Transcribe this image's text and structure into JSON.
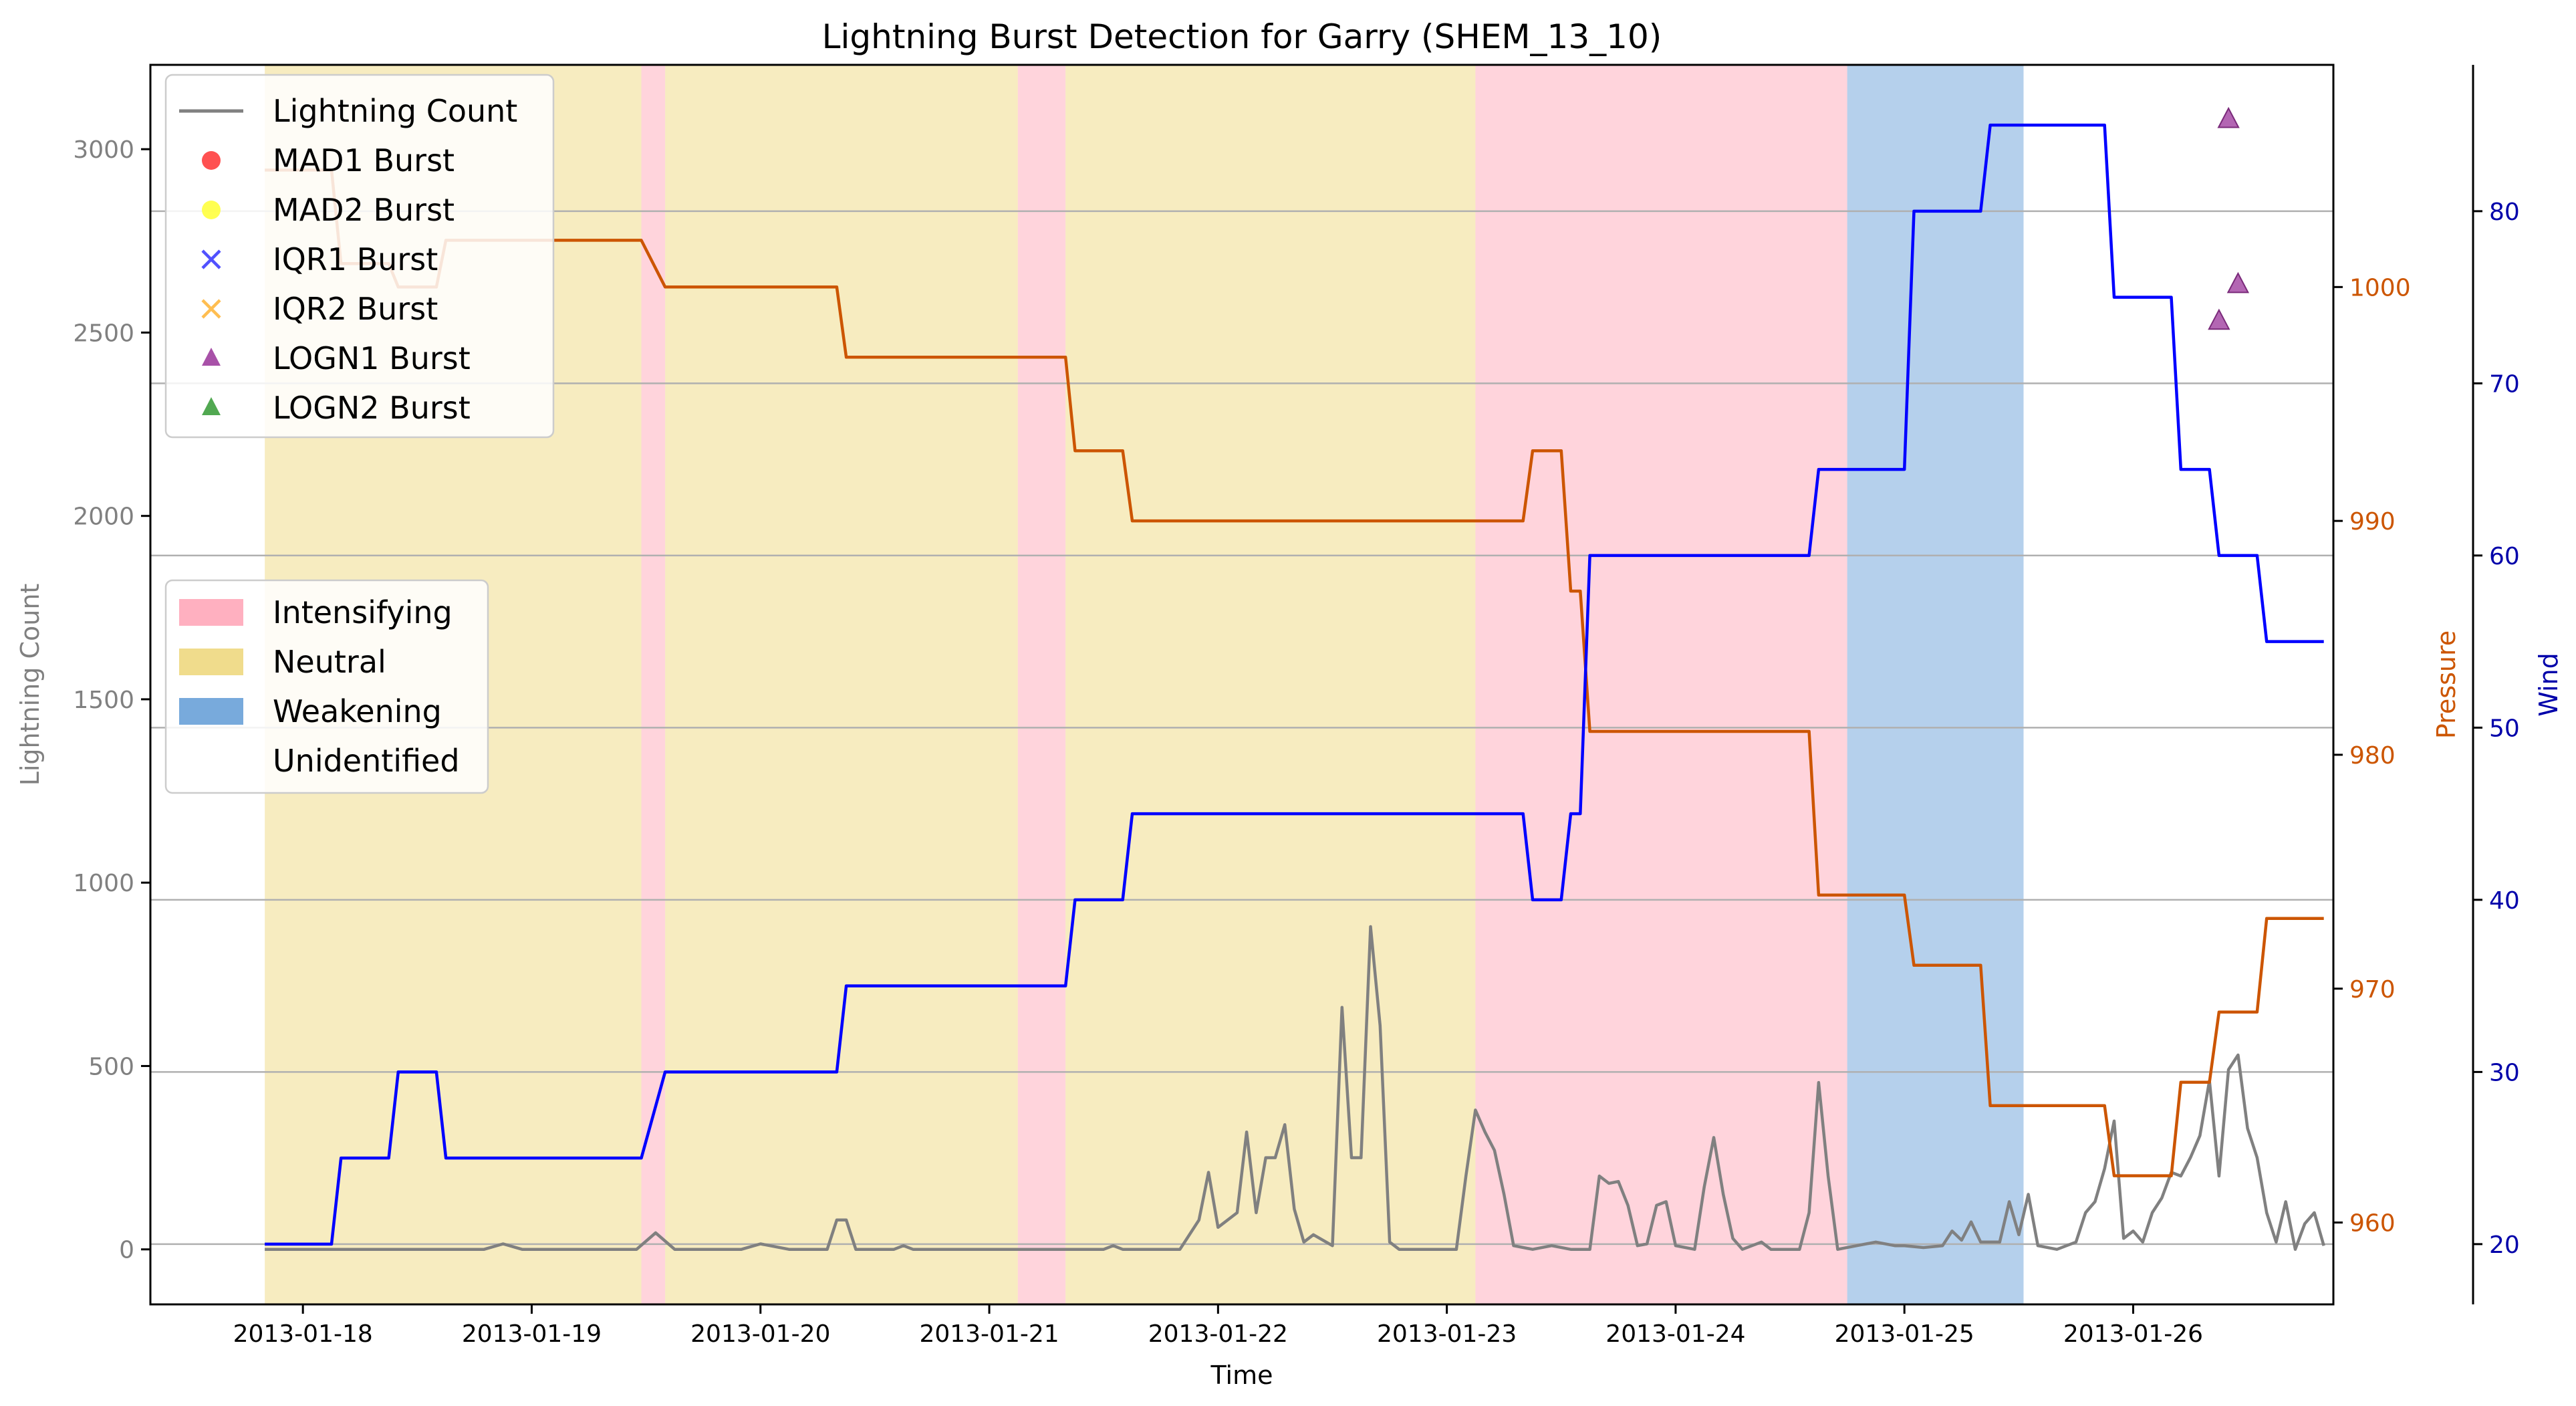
{
  "chart_data": {
    "type": "line",
    "title": "Lightning Burst Detection for Garry (SHEM_13_10)",
    "xlabel": "Time",
    "x_range": [
      "2013-01-17T08:00",
      "2013-01-26T21:00"
    ],
    "x_ticks": [
      "2013-01-18",
      "2013-01-19",
      "2013-01-20",
      "2013-01-21",
      "2013-01-22",
      "2013-01-23",
      "2013-01-24",
      "2013-01-25",
      "2013-01-26"
    ],
    "axes": {
      "lightning": {
        "label": "Lightning Count",
        "ylim": [
          -150,
          3230
        ],
        "ticks": [
          0,
          500,
          1000,
          1500,
          2000,
          2500,
          3000
        ],
        "color": "#808080"
      },
      "pressure": {
        "label": "Pressure",
        "ylim": [
          956.5,
          1009.5
        ],
        "ticks": [
          960,
          970,
          980,
          990,
          1000
        ],
        "color": "#cc5500"
      },
      "wind": {
        "label": "Wind",
        "ylim": [
          16.5,
          88.5
        ],
        "ticks": [
          20,
          30,
          40,
          50,
          60,
          70,
          80
        ],
        "color": "#0000aa"
      }
    },
    "grid_y_values": [
      20,
      30,
      40,
      50,
      60,
      70,
      80
    ],
    "phases": [
      {
        "start": "2013-01-17T20:00",
        "end": "2013-01-19T11:30",
        "phase": "Neutral"
      },
      {
        "start": "2013-01-19T11:30",
        "end": "2013-01-19T14:00",
        "phase": "Intensifying"
      },
      {
        "start": "2013-01-19T14:00",
        "end": "2013-01-21T03:00",
        "phase": "Neutral"
      },
      {
        "start": "2013-01-21T03:00",
        "end": "2013-01-21T08:00",
        "phase": "Intensifying"
      },
      {
        "start": "2013-01-21T08:00",
        "end": "2013-01-23T03:00",
        "phase": "Neutral"
      },
      {
        "start": "2013-01-23T03:00",
        "end": "2013-01-24T18:00",
        "phase": "Intensifying"
      },
      {
        "start": "2013-01-24T18:00",
        "end": "2013-01-25T12:30",
        "phase": "Weakening"
      }
    ],
    "series": [
      {
        "name": "Lightning Count",
        "axis": "lightning",
        "color": "#808080",
        "points": [
          [
            "2013-01-17T20:00",
            0
          ],
          [
            "2013-01-18T19:00",
            0
          ],
          [
            "2013-01-18T21:00",
            15
          ],
          [
            "2013-01-18T23:00",
            0
          ],
          [
            "2013-01-19T11:00",
            0
          ],
          [
            "2013-01-19T13:00",
            45
          ],
          [
            "2013-01-19T15:00",
            0
          ],
          [
            "2013-01-19T22:00",
            0
          ],
          [
            "2013-01-20T00:00",
            15
          ],
          [
            "2013-01-20T03:00",
            0
          ],
          [
            "2013-01-20T07:00",
            0
          ],
          [
            "2013-01-20T08:00",
            80
          ],
          [
            "2013-01-20T09:00",
            80
          ],
          [
            "2013-01-20T10:00",
            0
          ],
          [
            "2013-01-20T14:00",
            0
          ],
          [
            "2013-01-20T15:00",
            10
          ],
          [
            "2013-01-20T16:00",
            0
          ],
          [
            "2013-01-21T12:00",
            0
          ],
          [
            "2013-01-21T13:00",
            10
          ],
          [
            "2013-01-21T14:00",
            0
          ],
          [
            "2013-01-21T20:00",
            0
          ],
          [
            "2013-01-21T22:00",
            80
          ],
          [
            "2013-01-21T23:00",
            210
          ],
          [
            "2013-01-22T00:00",
            60
          ],
          [
            "2013-01-22T02:00",
            100
          ],
          [
            "2013-01-22T03:00",
            320
          ],
          [
            "2013-01-22T04:00",
            100
          ],
          [
            "2013-01-22T05:00",
            250
          ],
          [
            "2013-01-22T06:00",
            250
          ],
          [
            "2013-01-22T07:00",
            340
          ],
          [
            "2013-01-22T08:00",
            110
          ],
          [
            "2013-01-22T09:00",
            20
          ],
          [
            "2013-01-22T10:00",
            40
          ],
          [
            "2013-01-22T12:00",
            10
          ],
          [
            "2013-01-22T13:00",
            660
          ],
          [
            "2013-01-22T14:00",
            250
          ],
          [
            "2013-01-22T15:00",
            250
          ],
          [
            "2013-01-22T16:00",
            880
          ],
          [
            "2013-01-22T17:00",
            610
          ],
          [
            "2013-01-22T18:00",
            20
          ],
          [
            "2013-01-22T19:00",
            0
          ],
          [
            "2013-01-22T22:00",
            0
          ],
          [
            "2013-01-23T01:00",
            0
          ],
          [
            "2013-01-23T02:00",
            200
          ],
          [
            "2013-01-23T03:00",
            380
          ],
          [
            "2013-01-23T04:00",
            320
          ],
          [
            "2013-01-23T05:00",
            270
          ],
          [
            "2013-01-23T06:00",
            150
          ],
          [
            "2013-01-23T07:00",
            10
          ],
          [
            "2013-01-23T09:00",
            0
          ],
          [
            "2013-01-23T11:00",
            10
          ],
          [
            "2013-01-23T13:00",
            0
          ],
          [
            "2013-01-23T15:00",
            0
          ],
          [
            "2013-01-23T16:00",
            200
          ],
          [
            "2013-01-23T17:00",
            180
          ],
          [
            "2013-01-23T18:00",
            185
          ],
          [
            "2013-01-23T19:00",
            120
          ],
          [
            "2013-01-23T20:00",
            10
          ],
          [
            "2013-01-23T21:00",
            15
          ],
          [
            "2013-01-23T22:00",
            120
          ],
          [
            "2013-01-23T23:00",
            130
          ],
          [
            "2013-01-24T00:00",
            10
          ],
          [
            "2013-01-24T02:00",
            0
          ],
          [
            "2013-01-24T03:00",
            170
          ],
          [
            "2013-01-24T04:00",
            305
          ],
          [
            "2013-01-24T05:00",
            150
          ],
          [
            "2013-01-24T06:00",
            30
          ],
          [
            "2013-01-24T07:00",
            0
          ],
          [
            "2013-01-24T09:00",
            20
          ],
          [
            "2013-01-24T10:00",
            0
          ],
          [
            "2013-01-24T13:00",
            0
          ],
          [
            "2013-01-24T14:00",
            100
          ],
          [
            "2013-01-24T15:00",
            455
          ],
          [
            "2013-01-24T16:00",
            200
          ],
          [
            "2013-01-24T17:00",
            0
          ],
          [
            "2013-01-24T19:00",
            10
          ],
          [
            "2013-01-24T21:00",
            20
          ],
          [
            "2013-01-24T23:00",
            10
          ],
          [
            "2013-01-25T00:00",
            10
          ],
          [
            "2013-01-25T02:00",
            5
          ],
          [
            "2013-01-25T04:00",
            10
          ],
          [
            "2013-01-25T05:00",
            50
          ],
          [
            "2013-01-25T06:00",
            25
          ],
          [
            "2013-01-25T07:00",
            75
          ],
          [
            "2013-01-25T08:00",
            20
          ],
          [
            "2013-01-25T10:00",
            20
          ],
          [
            "2013-01-25T11:00",
            130
          ],
          [
            "2013-01-25T12:00",
            40
          ],
          [
            "2013-01-25T13:00",
            150
          ],
          [
            "2013-01-25T14:00",
            10
          ],
          [
            "2013-01-25T16:00",
            0
          ],
          [
            "2013-01-25T18:00",
            20
          ],
          [
            "2013-01-25T19:00",
            100
          ],
          [
            "2013-01-25T20:00",
            130
          ],
          [
            "2013-01-25T21:00",
            220
          ],
          [
            "2013-01-25T22:00",
            350
          ],
          [
            "2013-01-25T23:00",
            30
          ],
          [
            "2013-01-26T00:00",
            50
          ],
          [
            "2013-01-26T01:00",
            20
          ],
          [
            "2013-01-26T02:00",
            100
          ],
          [
            "2013-01-26T03:00",
            140
          ],
          [
            "2013-01-26T04:00",
            210
          ],
          [
            "2013-01-26T05:00",
            200
          ],
          [
            "2013-01-26T06:00",
            250
          ],
          [
            "2013-01-26T07:00",
            310
          ],
          [
            "2013-01-26T08:00",
            460
          ],
          [
            "2013-01-26T09:00",
            200
          ],
          [
            "2013-01-26T10:00",
            490
          ],
          [
            "2013-01-26T11:00",
            530
          ],
          [
            "2013-01-26T12:00",
            330
          ],
          [
            "2013-01-26T13:00",
            250
          ],
          [
            "2013-01-26T14:00",
            100
          ],
          [
            "2013-01-26T15:00",
            20
          ],
          [
            "2013-01-26T16:00",
            130
          ],
          [
            "2013-01-26T17:00",
            0
          ],
          [
            "2013-01-26T18:00",
            70
          ],
          [
            "2013-01-26T19:00",
            100
          ],
          [
            "2013-01-26T20:00",
            10
          ]
        ]
      },
      {
        "name": "Pressure",
        "axis": "pressure",
        "color": "#cc5500",
        "points": [
          [
            "2013-01-17T20:00",
            1005
          ],
          [
            "2013-01-18T03:00",
            1005
          ],
          [
            "2013-01-18T04:00",
            1001
          ],
          [
            "2013-01-18T09:00",
            1001
          ],
          [
            "2013-01-18T10:00",
            1000
          ],
          [
            "2013-01-18T14:00",
            1000
          ],
          [
            "2013-01-18T15:00",
            1002
          ],
          [
            "2013-01-19T11:30",
            1002
          ],
          [
            "2013-01-19T14:00",
            1000
          ],
          [
            "2013-01-20T08:00",
            1000
          ],
          [
            "2013-01-20T09:00",
            997
          ],
          [
            "2013-01-21T08:00",
            997
          ],
          [
            "2013-01-21T09:00",
            993
          ],
          [
            "2013-01-21T14:00",
            993
          ],
          [
            "2013-01-21T15:00",
            990
          ],
          [
            "2013-01-23T08:00",
            990
          ],
          [
            "2013-01-23T09:00",
            993
          ],
          [
            "2013-01-23T12:00",
            993
          ],
          [
            "2013-01-23T13:00",
            987
          ],
          [
            "2013-01-23T14:00",
            987
          ],
          [
            "2013-01-23T15:00",
            981
          ],
          [
            "2013-01-24T14:00",
            981
          ],
          [
            "2013-01-24T15:00",
            974
          ],
          [
            "2013-01-25T00:00",
            974
          ],
          [
            "2013-01-25T01:00",
            971
          ],
          [
            "2013-01-25T08:00",
            971
          ],
          [
            "2013-01-25T09:00",
            965
          ],
          [
            "2013-01-25T21:00",
            965
          ],
          [
            "2013-01-25T22:00",
            962
          ],
          [
            "2013-01-26T04:00",
            962
          ],
          [
            "2013-01-26T05:00",
            966
          ],
          [
            "2013-01-26T08:00",
            966
          ],
          [
            "2013-01-26T09:00",
            969
          ],
          [
            "2013-01-26T13:00",
            969
          ],
          [
            "2013-01-26T14:00",
            973
          ],
          [
            "2013-01-26T20:00",
            973
          ]
        ]
      },
      {
        "name": "Wind",
        "axis": "wind",
        "color": "#0000ff",
        "points": [
          [
            "2013-01-17T20:00",
            20
          ],
          [
            "2013-01-18T03:00",
            20
          ],
          [
            "2013-01-18T04:00",
            25
          ],
          [
            "2013-01-18T09:00",
            25
          ],
          [
            "2013-01-18T10:00",
            30
          ],
          [
            "2013-01-18T14:00",
            30
          ],
          [
            "2013-01-18T15:00",
            25
          ],
          [
            "2013-01-19T11:30",
            25
          ],
          [
            "2013-01-19T14:00",
            30
          ],
          [
            "2013-01-20T08:00",
            30
          ],
          [
            "2013-01-20T09:00",
            35
          ],
          [
            "2013-01-21T08:00",
            35
          ],
          [
            "2013-01-21T09:00",
            40
          ],
          [
            "2013-01-21T14:00",
            40
          ],
          [
            "2013-01-21T15:00",
            45
          ],
          [
            "2013-01-23T08:00",
            45
          ],
          [
            "2013-01-23T09:00",
            40
          ],
          [
            "2013-01-23T12:00",
            40
          ],
          [
            "2013-01-23T13:00",
            45
          ],
          [
            "2013-01-23T14:00",
            45
          ],
          [
            "2013-01-23T15:00",
            60
          ],
          [
            "2013-01-24T14:00",
            60
          ],
          [
            "2013-01-24T15:00",
            65
          ],
          [
            "2013-01-25T00:00",
            65
          ],
          [
            "2013-01-25T01:00",
            80
          ],
          [
            "2013-01-25T08:00",
            80
          ],
          [
            "2013-01-25T09:00",
            85
          ],
          [
            "2013-01-25T21:00",
            85
          ],
          [
            "2013-01-25T22:00",
            75
          ],
          [
            "2013-01-26T04:00",
            75
          ],
          [
            "2013-01-26T05:00",
            65
          ],
          [
            "2013-01-26T08:00",
            65
          ],
          [
            "2013-01-26T09:00",
            60
          ],
          [
            "2013-01-26T13:00",
            60
          ],
          [
            "2013-01-26T14:00",
            55
          ],
          [
            "2013-01-26T20:00",
            55
          ]
        ]
      }
    ],
    "bursts": [
      {
        "method": "LOGN1 Burst",
        "time": "2013-01-26T09:00",
        "value": 2530
      },
      {
        "method": "LOGN1 Burst",
        "time": "2013-01-26T10:00",
        "value": 3080
      },
      {
        "method": "LOGN1 Burst",
        "time": "2013-01-26T11:00",
        "value": 2630
      }
    ],
    "legend_series": {
      "position": "upper-left",
      "entries": [
        {
          "label": "Lightning Count",
          "marker": "line",
          "color": "#808080"
        },
        {
          "label": "MAD1 Burst",
          "marker": "circle",
          "color": "#ff3333"
        },
        {
          "label": "MAD2 Burst",
          "marker": "circle",
          "color": "#ffff33"
        },
        {
          "label": "IQR1 Burst",
          "marker": "x",
          "color": "#3333ff"
        },
        {
          "label": "IQR2 Burst",
          "marker": "x",
          "color": "#ffb333"
        },
        {
          "label": "LOGN1 Burst",
          "marker": "triangle",
          "color": "#993399"
        },
        {
          "label": "LOGN2 Burst",
          "marker": "triangle",
          "color": "#339933"
        }
      ]
    },
    "legend_phases": {
      "position": "center-left",
      "entries": [
        {
          "label": "Intensifying",
          "color": "#ffb0c0"
        },
        {
          "label": "Neutral",
          "color": "#f0dc8c"
        },
        {
          "label": "Weakening",
          "color": "#78aadc"
        },
        {
          "label": "Unidentified",
          "color": "#ffffff"
        }
      ]
    }
  }
}
